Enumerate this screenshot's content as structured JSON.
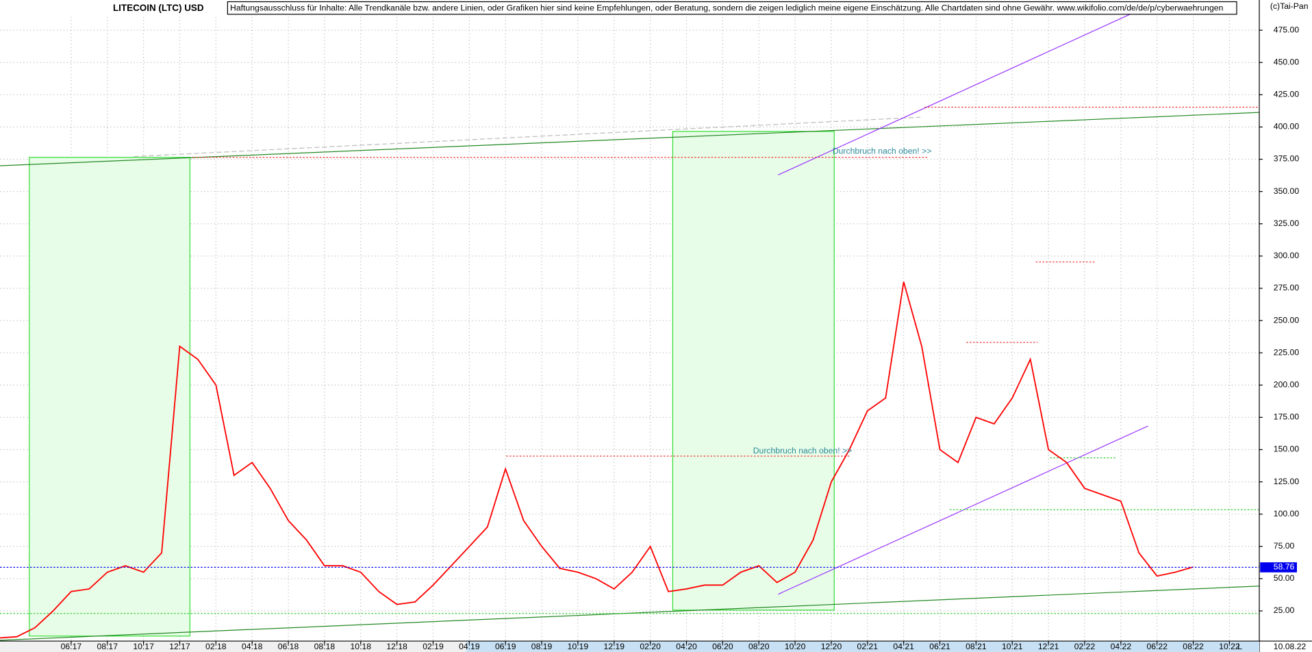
{
  "chart_data": {
    "type": "line",
    "title": "LITECOIN (LTC) USD",
    "disclaimer": "Haftungsausschluss für Inhalte: Alle Trendkanäle bzw. andere Linien, oder Grafiken hier sind keine Empfehlungen, oder Beratung, sondern die zeigen lediglich meine eigene Einschätzung. Alle Chartdaten sind ohne Gewähr.  www.wikifolio.com/de/de/p/cyberwaehrungen",
    "source": "(c)Tai-Pan",
    "annotations": [
      "Durchbruch nach oben! >>",
      "Durchbruch nach oben! >>"
    ],
    "last_value": 58.76,
    "last_date": "10.08.22",
    "axis_flag": "L",
    "color": "#ff0000",
    "categories": [
      null,
      null,
      null,
      null,
      "06:17",
      null,
      "08:17",
      null,
      "10:17",
      null,
      "12:17",
      null,
      "02:18",
      null,
      "04:18",
      null,
      "06:18",
      null,
      "08:18",
      null,
      "10:18",
      null,
      "12:18",
      null,
      "02:19",
      null,
      "04:19",
      null,
      "06:19",
      null,
      "08:19",
      null,
      "10:19",
      null,
      "12:19",
      null,
      "02:20",
      null,
      "04:20",
      null,
      "06:20",
      null,
      "08:20",
      null,
      "10:20",
      null,
      "12:20",
      null,
      "02:21",
      null,
      "04:21",
      null,
      "06:21",
      null,
      "08:21",
      null,
      "10:21",
      null,
      "12:21",
      null,
      "02:22",
      null,
      "04:22",
      null,
      "06:22",
      null,
      "08:22",
      null,
      "10:22",
      null
    ],
    "values": [
      4,
      5,
      12,
      25,
      40,
      42,
      55,
      60,
      55,
      70,
      230,
      220,
      200,
      130,
      140,
      120,
      95,
      80,
      60,
      60,
      55,
      40,
      30,
      32,
      45,
      60,
      75,
      90,
      135,
      95,
      75,
      58,
      55,
      50,
      42,
      55,
      75,
      40,
      42,
      45,
      45,
      55,
      60,
      47,
      55,
      80,
      125,
      150,
      180,
      190,
      280,
      230,
      150,
      140,
      175,
      170,
      190,
      220,
      150,
      140,
      120,
      115,
      110,
      70,
      52,
      55,
      59,
      null,
      null,
      null
    ],
    "ylim": [
      0,
      500
    ],
    "yticks": [
      {
        "value": 25,
        "label": "25.00"
      },
      {
        "value": 50,
        "label": "50.00"
      },
      {
        "value": 75,
        "label": "75.00"
      },
      {
        "value": 100,
        "label": "100.00"
      },
      {
        "value": 125,
        "label": "125.00"
      },
      {
        "value": 150,
        "label": "150.00"
      },
      {
        "value": 175,
        "label": "175.00"
      },
      {
        "value": 200,
        "label": "200.00"
      },
      {
        "value": 225,
        "label": "225.00"
      },
      {
        "value": 250,
        "label": "250.00"
      },
      {
        "value": 275,
        "label": "275.00"
      },
      {
        "value": 300,
        "label": "300.00"
      },
      {
        "value": 325,
        "label": "325.00"
      },
      {
        "value": 350,
        "label": "350.00"
      },
      {
        "value": 375,
        "label": "375.00"
      },
      {
        "value": 400,
        "label": "400.00"
      },
      {
        "value": 425,
        "label": "425.00"
      },
      {
        "value": 450,
        "label": "450.00"
      },
      {
        "value": 475,
        "label": "475.00"
      }
    ],
    "grid": true
  }
}
